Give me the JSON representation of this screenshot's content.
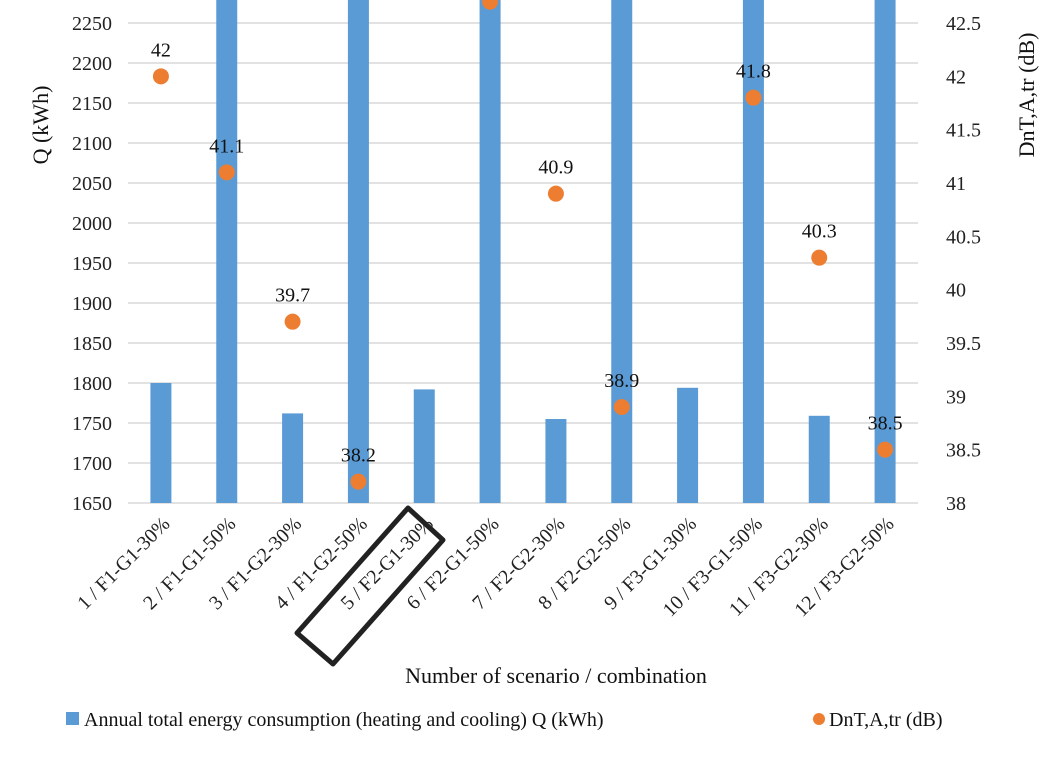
{
  "chart_data": {
    "type": "bar",
    "title": "",
    "xlabel": "Number of scenario / combination",
    "ylabel": "Q (kWh)",
    "y2label": "DnT,A,tr (dB)",
    "ylim": [
      1650,
      2250
    ],
    "y2lim": [
      38,
      42.5
    ],
    "yticks": [
      "1650",
      "1700",
      "1750",
      "1800",
      "1850",
      "1900",
      "1950",
      "2000",
      "2050",
      "2100",
      "2150",
      "2200",
      "2250"
    ],
    "y2ticks": [
      "38",
      "38.5",
      "39",
      "39.5",
      "40",
      "40.5",
      "41",
      "41.5",
      "42",
      "42.5"
    ],
    "grid": true,
    "legend_position": "bottom",
    "categories": [
      "1 / F1-G1-30%",
      "2 / F1-G1-50%",
      "3 / F1-G2-30%",
      "4 / F1-G2-50%",
      "5 / F2-G1-30%",
      "6 / F2-G1-50%",
      "7 / F2-G2-30%",
      "8 / F2-G2-50%",
      "9 / F3-G1-30%",
      "10 / F3-G1-50%",
      "11 / F3-G2-30%",
      "12 / F3-G2-50%"
    ],
    "series": [
      {
        "name": "Annual total energy consumption (heating and cooling) Q (kWh)",
        "type": "bar",
        "axis": "left",
        "color": "#5b9bd5",
        "values": [
          1800,
          2300,
          1762,
          2300,
          1792,
          2300,
          1755,
          2300,
          1794,
          2300,
          1759,
          2300
        ],
        "note": "even-numbered bars extend beyond the 2250 axis maximum (clipped)"
      },
      {
        "name": "DnT,A,tr (dB)",
        "type": "scatter",
        "axis": "right",
        "color": "#ed7d31",
        "values": [
          42,
          41.1,
          39.7,
          38.2,
          null,
          42.7,
          40.9,
          38.9,
          null,
          41.8,
          40.3,
          38.5
        ],
        "labels": [
          "42",
          "41.1",
          "39.7",
          "38.2",
          "",
          "",
          "40.9",
          "38.9",
          "",
          "41.8",
          "40.3",
          "38.5"
        ]
      }
    ],
    "highlighted_category": "5 / F2-G1-30%"
  }
}
